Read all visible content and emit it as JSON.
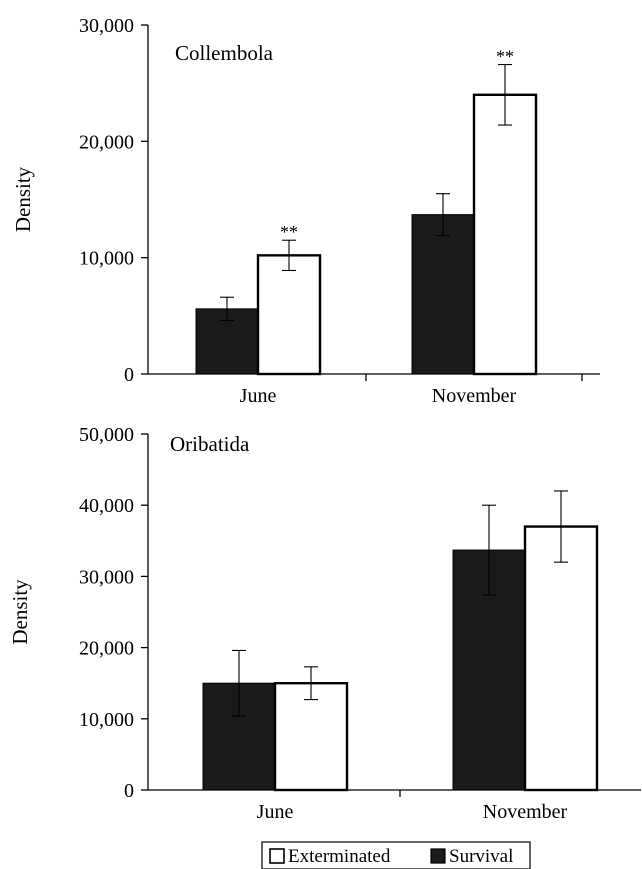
{
  "chart_data": [
    {
      "type": "bar",
      "title": "Collembola",
      "xlabel": "",
      "ylabel": "Density",
      "ylim": [
        0,
        30000
      ],
      "yticks": [
        0,
        10000,
        20000,
        30000
      ],
      "ytick_labels": [
        "0",
        "10,000",
        "20,000",
        "30,000"
      ],
      "categories": [
        "June",
        "November"
      ],
      "series": [
        {
          "name": "Survival",
          "color": "#1a1a1a",
          "values": [
            5600,
            13700
          ],
          "errors": [
            1000,
            1800
          ]
        },
        {
          "name": "Exterminated",
          "color": "#ffffff",
          "values": [
            10200,
            24000
          ],
          "errors": [
            1300,
            2600
          ]
        }
      ],
      "annotations": [
        {
          "text": "**",
          "category": "June",
          "series": "Exterminated"
        },
        {
          "text": "**",
          "category": "November",
          "series": "Exterminated"
        }
      ]
    },
    {
      "type": "bar",
      "title": "Oribatida",
      "xlabel": "",
      "ylabel": "Density",
      "ylim": [
        0,
        50000
      ],
      "yticks": [
        0,
        10000,
        20000,
        30000,
        40000,
        50000
      ],
      "ytick_labels": [
        "0",
        "10,000",
        "20,000",
        "30,000",
        "40,000",
        "50,000"
      ],
      "categories": [
        "June",
        "November"
      ],
      "series": [
        {
          "name": "Survival",
          "color": "#1a1a1a",
          "values": [
            15000,
            33700
          ],
          "errors": [
            4600,
            6300
          ]
        },
        {
          "name": "Exterminated",
          "color": "#ffffff",
          "values": [
            15000,
            37000
          ],
          "errors": [
            2300,
            5000
          ]
        }
      ],
      "annotations": []
    }
  ],
  "legend": {
    "position": "bottom",
    "items": [
      {
        "label": "Exterminated",
        "color": "#ffffff"
      },
      {
        "label": "Survival",
        "color": "#1a1a1a"
      }
    ]
  }
}
